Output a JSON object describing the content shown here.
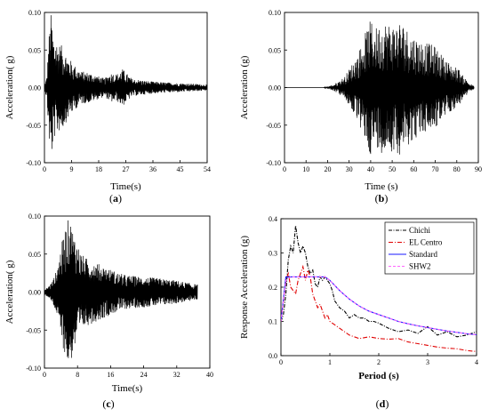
{
  "chart_data": [
    {
      "type": "line",
      "panel": "(a)",
      "xlabel": "Time(s)",
      "ylabel": "Acceleration( g)",
      "xlim": [
        0,
        54
      ],
      "ylim": [
        -0.1,
        0.1
      ],
      "xticks": [
        "0",
        "9",
        "18",
        "27",
        "36",
        "45",
        "54"
      ],
      "yticks": [
        "0.10",
        "0.05",
        "0.00",
        "-0.05",
        "-0.10"
      ],
      "series": [
        {
          "values_envelope": [
            [
              0,
              0.003
            ],
            [
              0.8,
              0.015
            ],
            [
              1.5,
              0.07
            ],
            [
              2.2,
              0.1
            ],
            [
              3,
              0.07
            ],
            [
              4.5,
              0.06
            ],
            [
              6,
              0.055
            ],
            [
              8,
              0.04
            ],
            [
              10,
              0.03
            ],
            [
              12,
              0.022
            ],
            [
              15,
              0.02
            ],
            [
              18,
              0.015
            ],
            [
              20,
              0.012
            ],
            [
              22,
              0.02
            ],
            [
              24,
              0.018
            ],
            [
              26,
              0.025
            ],
            [
              27,
              0.02
            ],
            [
              29,
              0.012
            ],
            [
              32,
              0.01
            ],
            [
              36,
              0.008
            ],
            [
              40,
              0.007
            ],
            [
              45,
              0.006
            ],
            [
              50,
              0.005
            ],
            [
              54,
              0.004
            ]
          ]
        }
      ]
    },
    {
      "type": "line",
      "panel": "(b)",
      "xlabel": "Time (s)",
      "ylabel": "Acceleration (g)",
      "xlim": [
        0,
        90
      ],
      "ylim": [
        -0.1,
        0.1
      ],
      "xticks": [
        "0",
        "10",
        "20",
        "30",
        "40",
        "50",
        "60",
        "70",
        "80",
        "90"
      ],
      "yticks": [
        "0.10",
        "0.05",
        "0.00",
        "-0.05",
        "-0.10"
      ],
      "series": [
        {
          "values_envelope": [
            [
              0,
              0
            ],
            [
              18,
              0
            ],
            [
              22,
              0.003
            ],
            [
              25,
              0.008
            ],
            [
              28,
              0.015
            ],
            [
              31,
              0.03
            ],
            [
              34,
              0.045
            ],
            [
              37,
              0.07
            ],
            [
              40,
              0.09
            ],
            [
              43,
              0.08
            ],
            [
              46,
              0.09
            ],
            [
              50,
              0.085
            ],
            [
              54,
              0.09
            ],
            [
              58,
              0.075
            ],
            [
              62,
              0.065
            ],
            [
              66,
              0.06
            ],
            [
              70,
              0.055
            ],
            [
              74,
              0.04
            ],
            [
              78,
              0.03
            ],
            [
              81,
              0.025
            ],
            [
              83,
              0.015
            ],
            [
              85,
              0.01
            ],
            [
              86,
              0.005
            ],
            [
              87,
              0.004
            ],
            [
              88,
              0.002
            ]
          ]
        }
      ]
    },
    {
      "type": "line",
      "panel": "(c)",
      "xlabel": "Time(s)",
      "ylabel": "Acceleration( g)",
      "xlim": [
        0,
        40
      ],
      "ylim": [
        -0.1,
        0.1
      ],
      "xticks": [
        "0",
        "8",
        "16",
        "24",
        "32",
        "40"
      ],
      "yticks": [
        "0.10",
        "0.05",
        "0.00",
        "-0.05",
        "-0.10"
      ],
      "series": [
        {
          "values_envelope": [
            [
              0,
              0.003
            ],
            [
              1,
              0.008
            ],
            [
              2,
              0.015
            ],
            [
              3,
              0.03
            ],
            [
              4,
              0.06
            ],
            [
              5,
              0.085
            ],
            [
              6,
              0.1
            ],
            [
              7,
              0.08
            ],
            [
              8,
              0.065
            ],
            [
              9,
              0.05
            ],
            [
              10,
              0.045
            ],
            [
              12,
              0.04
            ],
            [
              14,
              0.035
            ],
            [
              16,
              0.03
            ],
            [
              18,
              0.025
            ],
            [
              20,
              0.022
            ],
            [
              24,
              0.02
            ],
            [
              28,
              0.018
            ],
            [
              32,
              0.015
            ],
            [
              35,
              0.012
            ],
            [
              37,
              0.01
            ]
          ]
        }
      ]
    },
    {
      "type": "line",
      "panel": "(d)",
      "xlabel": "Period (s)",
      "ylabel": "Response Acceleration (g)",
      "xlim": [
        0,
        4
      ],
      "ylim": [
        0,
        0.4
      ],
      "xticks": [
        "0",
        "1",
        "2",
        "3",
        "4"
      ],
      "yticks": [
        "0.0",
        "0.1",
        "0.2",
        "0.3",
        "0.4"
      ],
      "legend_position": "top-right",
      "series": [
        {
          "name": "Chichi",
          "color": "#000000",
          "dash": "4,1.5,1,1.5",
          "x": [
            0,
            0.05,
            0.1,
            0.15,
            0.2,
            0.25,
            0.3,
            0.35,
            0.4,
            0.45,
            0.5,
            0.55,
            0.6,
            0.65,
            0.7,
            0.75,
            0.8,
            0.85,
            0.9,
            0.95,
            1.0,
            1.05,
            1.1,
            1.2,
            1.3,
            1.4,
            1.5,
            1.6,
            1.7,
            1.8,
            1.9,
            2.0,
            2.2,
            2.4,
            2.6,
            2.8,
            3.0,
            3.2,
            3.4,
            3.6,
            3.8,
            4.0
          ],
          "y": [
            0.1,
            0.12,
            0.18,
            0.28,
            0.32,
            0.3,
            0.38,
            0.33,
            0.3,
            0.32,
            0.3,
            0.26,
            0.24,
            0.25,
            0.21,
            0.2,
            0.23,
            0.22,
            0.23,
            0.22,
            0.21,
            0.19,
            0.16,
            0.14,
            0.13,
            0.11,
            0.12,
            0.11,
            0.11,
            0.1,
            0.1,
            0.095,
            0.08,
            0.07,
            0.075,
            0.065,
            0.085,
            0.06,
            0.07,
            0.055,
            0.06,
            0.07
          ]
        },
        {
          "name": "EL Centro",
          "color": "#e00000",
          "dash": "5,2,1,2",
          "x": [
            0,
            0.05,
            0.1,
            0.15,
            0.2,
            0.25,
            0.3,
            0.35,
            0.4,
            0.45,
            0.5,
            0.55,
            0.6,
            0.65,
            0.7,
            0.75,
            0.8,
            0.85,
            0.9,
            0.95,
            1.0,
            1.1,
            1.2,
            1.3,
            1.4,
            1.5,
            1.6,
            1.8,
            2.0,
            2.2,
            2.4,
            2.6,
            2.8,
            3.0,
            3.2,
            3.4,
            3.6,
            3.8,
            4.0
          ],
          "y": [
            0.1,
            0.16,
            0.22,
            0.24,
            0.2,
            0.19,
            0.18,
            0.22,
            0.24,
            0.26,
            0.22,
            0.25,
            0.23,
            0.18,
            0.16,
            0.14,
            0.15,
            0.13,
            0.11,
            0.12,
            0.1,
            0.09,
            0.08,
            0.07,
            0.06,
            0.055,
            0.05,
            0.055,
            0.05,
            0.048,
            0.05,
            0.04,
            0.035,
            0.03,
            0.025,
            0.022,
            0.02,
            0.015,
            0.012
          ]
        },
        {
          "name": "Standard",
          "color": "#1a1aff",
          "dash": "",
          "x": [
            0,
            0.1,
            0.2,
            0.3,
            0.4,
            0.5,
            0.6,
            0.7,
            0.8,
            0.9,
            1.0,
            1.2,
            1.4,
            1.6,
            1.8,
            2.0,
            2.2,
            2.4,
            2.6,
            2.8,
            3.0,
            3.2,
            3.4,
            3.6,
            3.8,
            4.0
          ],
          "y": [
            0.1,
            0.23,
            0.23,
            0.23,
            0.23,
            0.23,
            0.23,
            0.23,
            0.23,
            0.23,
            0.22,
            0.19,
            0.165,
            0.145,
            0.13,
            0.12,
            0.11,
            0.1,
            0.093,
            0.087,
            0.082,
            0.077,
            0.072,
            0.068,
            0.064,
            0.061
          ]
        },
        {
          "name": "SHW2",
          "color": "#ff66ff",
          "dash": "3,2",
          "x": [
            0,
            0.1,
            0.2,
            0.3,
            0.4,
            0.5,
            0.6,
            0.7,
            0.8,
            0.9,
            1.0,
            1.2,
            1.4,
            1.6,
            1.8,
            2.0,
            2.2,
            2.4,
            2.6,
            2.8,
            3.0,
            3.2,
            3.4,
            3.6,
            3.8,
            4.0
          ],
          "y": [
            0.1,
            0.22,
            0.23,
            0.23,
            0.23,
            0.23,
            0.23,
            0.23,
            0.23,
            0.23,
            0.22,
            0.19,
            0.165,
            0.145,
            0.13,
            0.12,
            0.11,
            0.1,
            0.093,
            0.087,
            0.082,
            0.077,
            0.072,
            0.068,
            0.064,
            0.061
          ]
        }
      ]
    }
  ]
}
